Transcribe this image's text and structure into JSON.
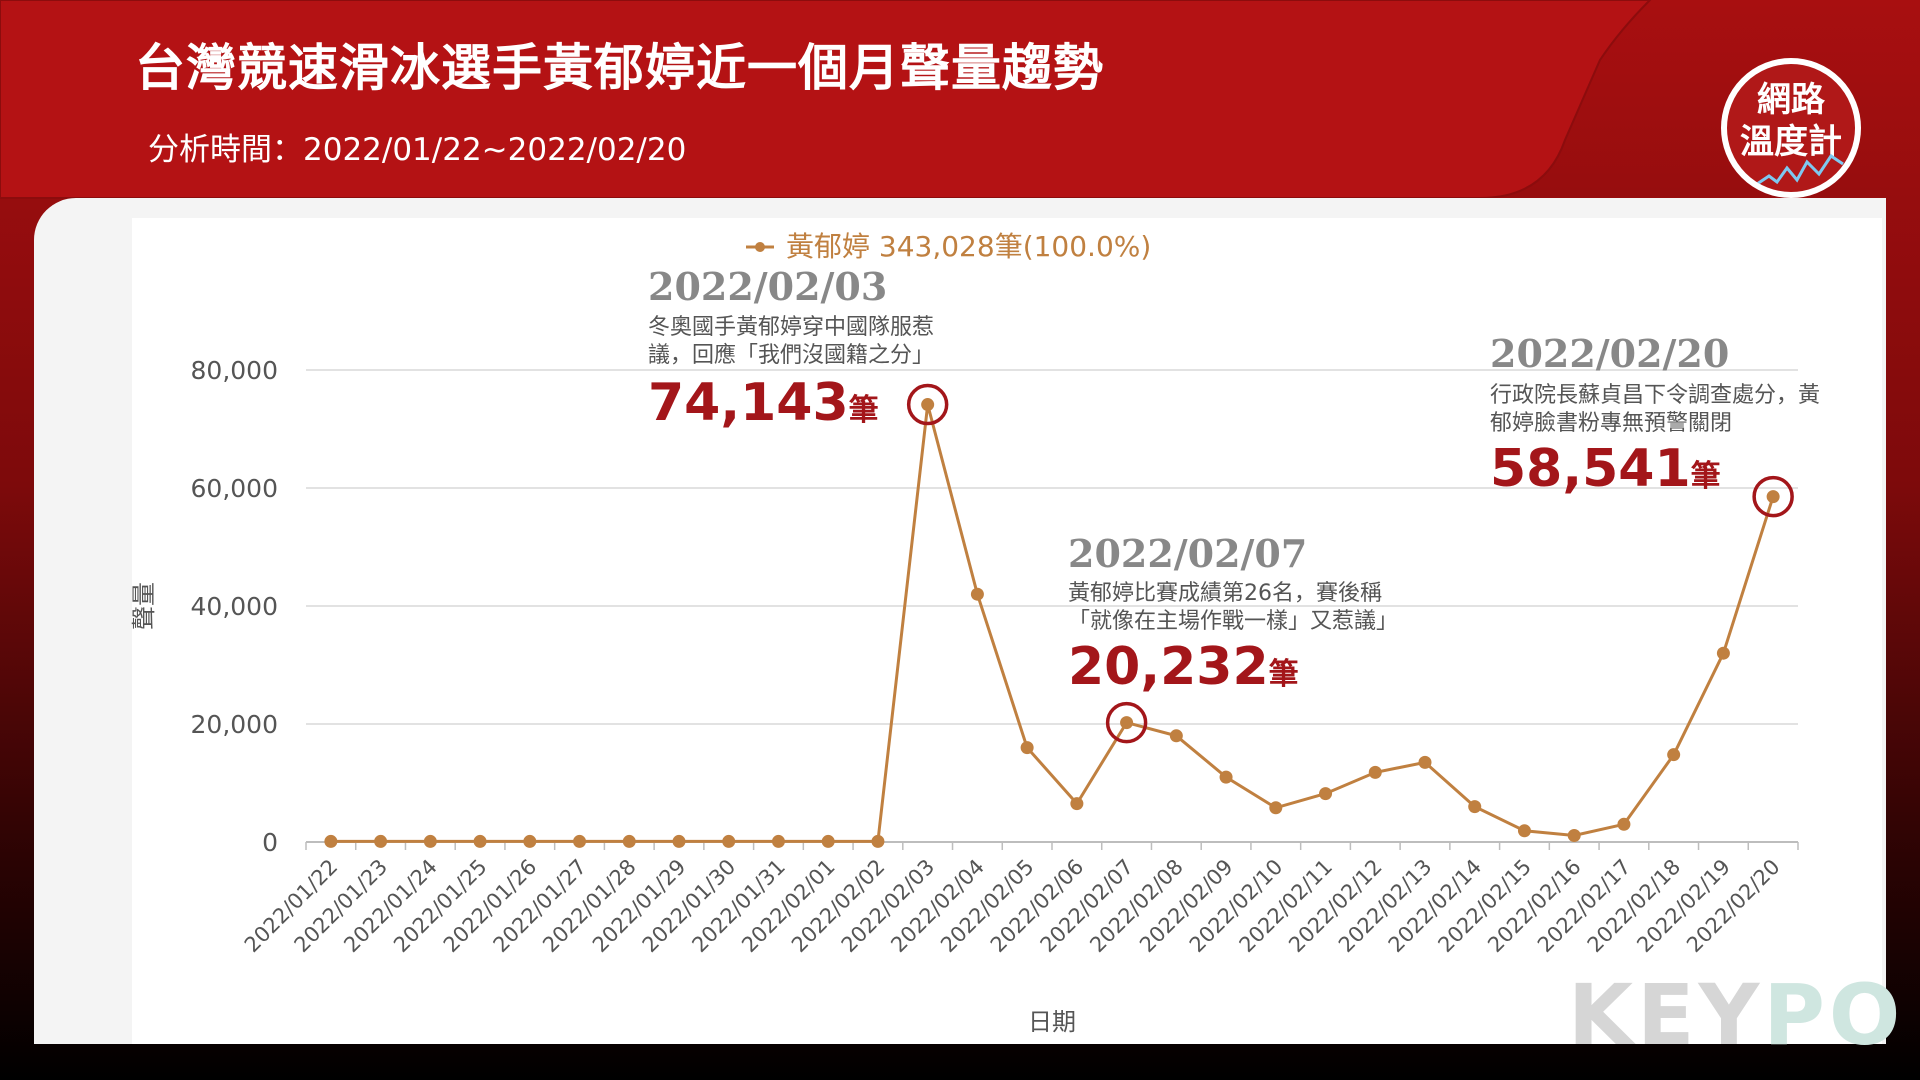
{
  "header": {
    "title": "台灣競速滑冰選手黃郁婷近一個月聲量趨勢",
    "subtitle": "分析時間：2022/01/22~2022/02/20"
  },
  "badge": {
    "line1": "網路",
    "line2": "溫度計"
  },
  "watermark": {
    "key": "KEY",
    "po": "PO"
  },
  "colors": {
    "header_red": "#a80f10",
    "series": "#c08040",
    "highlight": "#a3161a",
    "annotation_date": "#888888"
  },
  "chart_data": {
    "type": "line",
    "xlabel": "日期",
    "ylabel": "聲量",
    "ylim": [
      0,
      80000
    ],
    "yticks": [
      0,
      20000,
      40000,
      60000,
      80000
    ],
    "ytick_labels": [
      "0",
      "20,000",
      "40,000",
      "60,000",
      "80,000"
    ],
    "grid": true,
    "legend": "top-center",
    "categories": [
      "2022/01/22",
      "2022/01/23",
      "2022/01/24",
      "2022/01/25",
      "2022/01/26",
      "2022/01/27",
      "2022/01/28",
      "2022/01/29",
      "2022/01/30",
      "2022/01/31",
      "2022/02/01",
      "2022/02/02",
      "2022/02/03",
      "2022/02/04",
      "2022/02/05",
      "2022/02/06",
      "2022/02/07",
      "2022/02/08",
      "2022/02/09",
      "2022/02/10",
      "2022/02/11",
      "2022/02/12",
      "2022/02/13",
      "2022/02/14",
      "2022/02/15",
      "2022/02/16",
      "2022/02/17",
      "2022/02/18",
      "2022/02/19",
      "2022/02/20"
    ],
    "series": [
      {
        "name": "黃郁婷 343,028筆(100.0%)",
        "values": [
          100,
          100,
          100,
          100,
          100,
          100,
          100,
          100,
          100,
          100,
          100,
          100,
          74143,
          42000,
          16000,
          6500,
          20232,
          18000,
          11000,
          5800,
          8200,
          11800,
          13500,
          6000,
          1900,
          1100,
          3000,
          14800,
          32000,
          58541
        ]
      }
    ],
    "annotations": [
      {
        "index": 12,
        "date": "2022/02/03",
        "text_lines": [
          "冬奧國手黃郁婷穿中國隊服惹",
          "議，回應「我們沒國籍之分」"
        ],
        "value_text": "74,143",
        "unit": "筆"
      },
      {
        "index": 16,
        "date": "2022/02/07",
        "text_lines": [
          "黃郁婷比賽成績第26名，賽後稱",
          "「就像在主場作戰一樣」又惹議」"
        ],
        "value_text": "20,232",
        "unit": "筆"
      },
      {
        "index": 29,
        "date": "2022/02/20",
        "text_lines": [
          "行政院長蘇貞昌下令調查處分，黃",
          "郁婷臉書粉專無預警關閉"
        ],
        "value_text": "58,541",
        "unit": "筆"
      }
    ]
  }
}
